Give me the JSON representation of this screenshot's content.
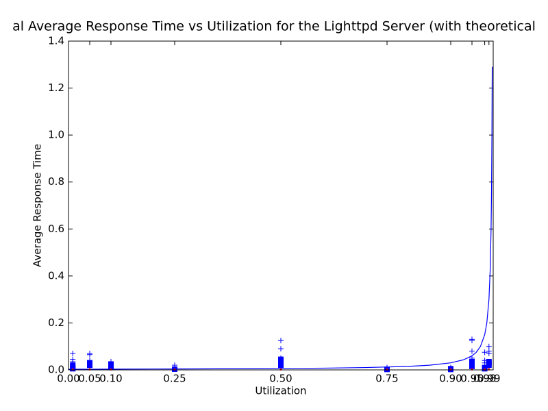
{
  "chart_data": {
    "type": "scatter",
    "title": "al Average Response Time vs Utilization for the Lighttpd Server (with theoretical",
    "x_label": "Utilization",
    "y_label": "Average Response Time",
    "xlim": [
      0,
      1
    ],
    "ylim": [
      0,
      1.4
    ],
    "xticks": [
      {
        "value": 0,
        "label": "0.00"
      },
      {
        "value": 0.05,
        "label": "0.05"
      },
      {
        "value": 0.1,
        "label": "0.10"
      },
      {
        "value": 0.25,
        "label": "0.25"
      },
      {
        "value": 0.5,
        "label": "0.50"
      },
      {
        "value": 0.75,
        "label": "0.75"
      },
      {
        "value": 0.9,
        "label": "0.90"
      },
      {
        "value": 0.95,
        "label": "0.95"
      },
      {
        "value": 0.98,
        "label": "0.98"
      },
      {
        "value": 0.99,
        "label": "0.99"
      }
    ],
    "yticks": [
      {
        "value": 0,
        "label": "0.0"
      },
      0.2,
      0.4,
      0.6,
      0.8,
      {
        "value": 1,
        "label": "1.0"
      },
      1.2,
      1.4
    ],
    "series": [
      {
        "style": "line",
        "color": "#0000ff",
        "x": [
          0,
          0.1,
          0.2,
          0.3,
          0.4,
          0.5,
          0.6,
          0.7,
          0.8,
          0.85,
          0.9,
          0.93,
          0.95,
          0.96,
          0.97,
          0.98,
          0.985,
          0.99,
          0.993,
          0.995,
          0.996,
          0.997,
          0.9977
        ],
        "values": [
          0.003,
          0.0033,
          0.0038,
          0.0043,
          0.005,
          0.006,
          0.0075,
          0.01,
          0.015,
          0.02,
          0.03,
          0.043,
          0.06,
          0.075,
          0.1,
          0.15,
          0.2,
          0.3,
          0.43,
          0.6,
          0.75,
          1.0,
          1.29
        ]
      },
      {
        "style": "plus",
        "color": "#0000ff",
        "x": [
          0.01,
          0.01,
          0.01,
          0.01,
          0.05,
          0.05,
          0.05,
          0.05,
          0.1,
          0.1,
          0.25,
          0.25,
          0.5,
          0.5,
          0.5,
          0.5,
          0.75,
          0.9,
          0.95,
          0.95,
          0.95,
          0.95,
          0.98,
          0.98,
          0.98,
          0.99,
          0.99,
          0.99
        ],
        "values": [
          0.07,
          0.045,
          0.035,
          0.02,
          0.07,
          0.065,
          0.04,
          0.03,
          0.035,
          0.02,
          0.02,
          0.01,
          0.125,
          0.09,
          0.05,
          0.04,
          0.01,
          0.01,
          0.13,
          0.125,
          0.08,
          0.05,
          0.075,
          0.04,
          0.03,
          0.1,
          0.08,
          0.07
        ]
      },
      {
        "style": "square",
        "color": "#0000ff",
        "x": [
          0.01,
          0.01,
          0.01,
          0.05,
          0.05,
          0.05,
          0.1,
          0.1,
          0.1,
          0.25,
          0.5,
          0.5,
          0.5,
          0.5,
          0.75,
          0.9,
          0.9,
          0.95,
          0.95,
          0.95,
          0.98,
          0.98,
          0.99,
          0.99,
          0.99
        ],
        "values": [
          0.02,
          0.01,
          0.005,
          0.03,
          0.025,
          0.02,
          0.025,
          0.015,
          0.01,
          0.003,
          0.045,
          0.035,
          0.025,
          0.02,
          0.002,
          0.005,
          0.002,
          0.035,
          0.025,
          0.015,
          0.01,
          0.005,
          0.035,
          0.03,
          0.02
        ]
      },
      {
        "style": "dot",
        "color": "#ff0000",
        "x": [
          0.01,
          0.05,
          0.1,
          0.25,
          0.5,
          0.75,
          0.9,
          0.95,
          0.98,
          0.99
        ],
        "values": [
          0.002,
          0.002,
          0.002,
          0.002,
          0.002,
          0.002,
          0.002,
          0.002,
          0.002,
          0.002
        ]
      }
    ]
  }
}
